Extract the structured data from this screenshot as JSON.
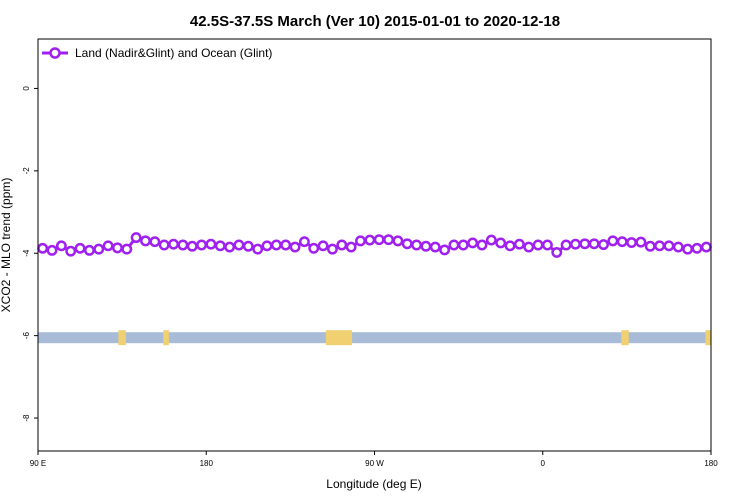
{
  "chart_data": {
    "type": "line",
    "title": "42.5S-37.5S March (Ver 10)   2015-01-01 to 2020-12-18",
    "xlabel": "Longitude (deg E)",
    "ylabel": "XCO2 - MLO trend (ppm)",
    "xlim": [
      90,
      450
    ],
    "ylim": [
      -8.8,
      1.2
    ],
    "xticks": [
      {
        "value": 90,
        "label": "90 E"
      },
      {
        "value": 180,
        "label": "180"
      },
      {
        "value": 270,
        "label": "90 W"
      },
      {
        "value": 360,
        "label": "0"
      },
      {
        "value": 450,
        "label": "180"
      }
    ],
    "yticks": [
      {
        "value": 0,
        "label": "0"
      },
      {
        "value": -2,
        "label": "-2"
      },
      {
        "value": -4,
        "label": "-4"
      },
      {
        "value": -6,
        "label": "-6"
      },
      {
        "value": -8,
        "label": "-8"
      }
    ],
    "legend_position": "top-left",
    "series": [
      {
        "name": "Land (Nadir&Glint) and Ocean (Glint)",
        "color": "#a020f0",
        "x": [
          92.5,
          97.5,
          102.5,
          107.5,
          112.5,
          117.5,
          122.5,
          127.5,
          132.5,
          137.5,
          142.5,
          147.5,
          152.5,
          157.5,
          162.5,
          167.5,
          172.5,
          177.5,
          182.5,
          187.5,
          192.5,
          197.5,
          202.5,
          207.5,
          212.5,
          217.5,
          222.5,
          227.5,
          232.5,
          237.5,
          242.5,
          247.5,
          252.5,
          257.5,
          262.5,
          267.5,
          272.5,
          277.5,
          282.5,
          287.5,
          292.5,
          297.5,
          302.5,
          307.5,
          312.5,
          317.5,
          322.5,
          327.5,
          332.5,
          337.5,
          342.5,
          347.5,
          352.5,
          357.5,
          362.5,
          367.5,
          372.5,
          377.5,
          382.5,
          387.5,
          392.5,
          397.5,
          402.5,
          407.5,
          412.5,
          417.5,
          422.5,
          427.5,
          432.5,
          437.5,
          442.5,
          447.5
        ],
        "values": [
          -3.88,
          -3.93,
          -3.82,
          -3.95,
          -3.88,
          -3.93,
          -3.9,
          -3.82,
          -3.87,
          -3.9,
          -3.62,
          -3.7,
          -3.72,
          -3.8,
          -3.78,
          -3.8,
          -3.83,
          -3.8,
          -3.78,
          -3.82,
          -3.85,
          -3.8,
          -3.83,
          -3.9,
          -3.82,
          -3.8,
          -3.8,
          -3.85,
          -3.72,
          -3.88,
          -3.82,
          -3.9,
          -3.8,
          -3.85,
          -3.7,
          -3.68,
          -3.67,
          -3.67,
          -3.7,
          -3.77,
          -3.8,
          -3.83,
          -3.85,
          -3.92,
          -3.8,
          -3.8,
          -3.75,
          -3.8,
          -3.68,
          -3.75,
          -3.82,
          -3.78,
          -3.85,
          -3.8,
          -3.8,
          -3.98,
          -3.8,
          -3.78,
          -3.77,
          -3.77,
          -3.79,
          -3.7,
          -3.72,
          -3.74,
          -3.73,
          -3.83,
          -3.82,
          -3.82,
          -3.85,
          -3.9,
          -3.88,
          -3.85
        ]
      }
    ],
    "landmask": {
      "y_center": -6.05,
      "ocean_color": "#a8bcd8",
      "land_color": "#f0d070",
      "land_x": [
        [
          133,
          137
        ],
        [
          157,
          160
        ],
        [
          244,
          258
        ],
        [
          402,
          406
        ],
        [
          447,
          450
        ]
      ]
    }
  }
}
